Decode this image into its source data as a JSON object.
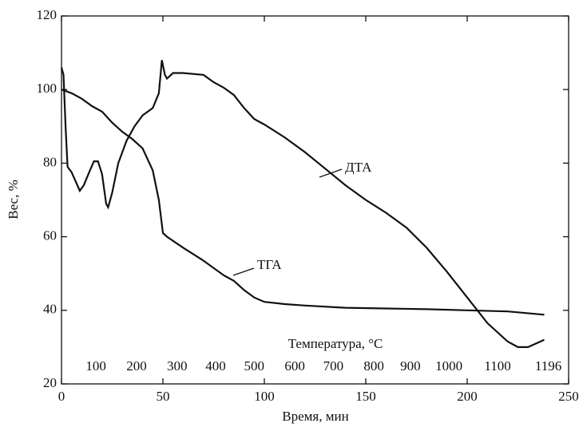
{
  "chart_data": {
    "type": "line",
    "xlabel": "Время, мин",
    "ylabel": "Вес, %",
    "xlim": [
      0,
      250
    ],
    "xticks": [
      0,
      50,
      100,
      150,
      200,
      250
    ],
    "ylim": [
      20,
      120
    ],
    "yticks": [
      20,
      40,
      60,
      80,
      100,
      120
    ],
    "x2label": "Температура, °С",
    "x2ticks": [
      {
        "value": 17,
        "label": "100"
      },
      {
        "value": 37,
        "label": "200"
      },
      {
        "value": 57,
        "label": "300"
      },
      {
        "value": 76,
        "label": "400"
      },
      {
        "value": 95,
        "label": "500"
      },
      {
        "value": 115,
        "label": "600"
      },
      {
        "value": 134,
        "label": "700"
      },
      {
        "value": 154,
        "label": "800"
      },
      {
        "value": 172,
        "label": "900"
      },
      {
        "value": 191,
        "label": "1000"
      },
      {
        "value": 215,
        "label": "1100"
      },
      {
        "value": 240,
        "label": "1196"
      }
    ],
    "series": [
      {
        "name": "ТГА",
        "color": "#111111",
        "x": [
          0,
          5,
          10,
          15,
          20,
          25,
          30,
          35,
          40,
          45,
          48,
          50,
          52,
          60,
          70,
          80,
          85,
          90,
          95,
          100,
          110,
          120,
          140,
          160,
          180,
          200,
          220,
          238
        ],
        "values": [
          100,
          99,
          97.5,
          95.5,
          94,
          91,
          88.5,
          86.5,
          84,
          78,
          70,
          61,
          60,
          57,
          53.5,
          49.5,
          48,
          45.5,
          43.5,
          42.3,
          41.7,
          41.3,
          40.7,
          40.5,
          40.3,
          40,
          39.7,
          38.8
        ]
      },
      {
        "name": "ДТА",
        "color": "#111111",
        "x": [
          0,
          1,
          2,
          3,
          5,
          7,
          9,
          11,
          14,
          16,
          18,
          20,
          22,
          23,
          25,
          28,
          32,
          36,
          40,
          45,
          48,
          49.5,
          51,
          52,
          55,
          60,
          70,
          75,
          80,
          85,
          90,
          95,
          100,
          110,
          120,
          130,
          140,
          150,
          160,
          170,
          180,
          190,
          200,
          210,
          220,
          225,
          230,
          238
        ],
        "values": [
          106,
          104,
          90,
          79,
          77.5,
          75,
          72.5,
          74,
          78,
          80.5,
          80.5,
          77,
          69,
          68,
          72,
          80,
          86,
          90,
          93,
          95,
          99,
          108,
          104,
          103,
          104.5,
          104.5,
          104,
          102,
          100.5,
          98.5,
          95,
          92,
          90.5,
          87,
          83,
          78.5,
          74,
          70,
          66.5,
          62.5,
          57,
          50.5,
          43.5,
          36.5,
          31.5,
          30,
          30,
          32
        ]
      }
    ]
  }
}
